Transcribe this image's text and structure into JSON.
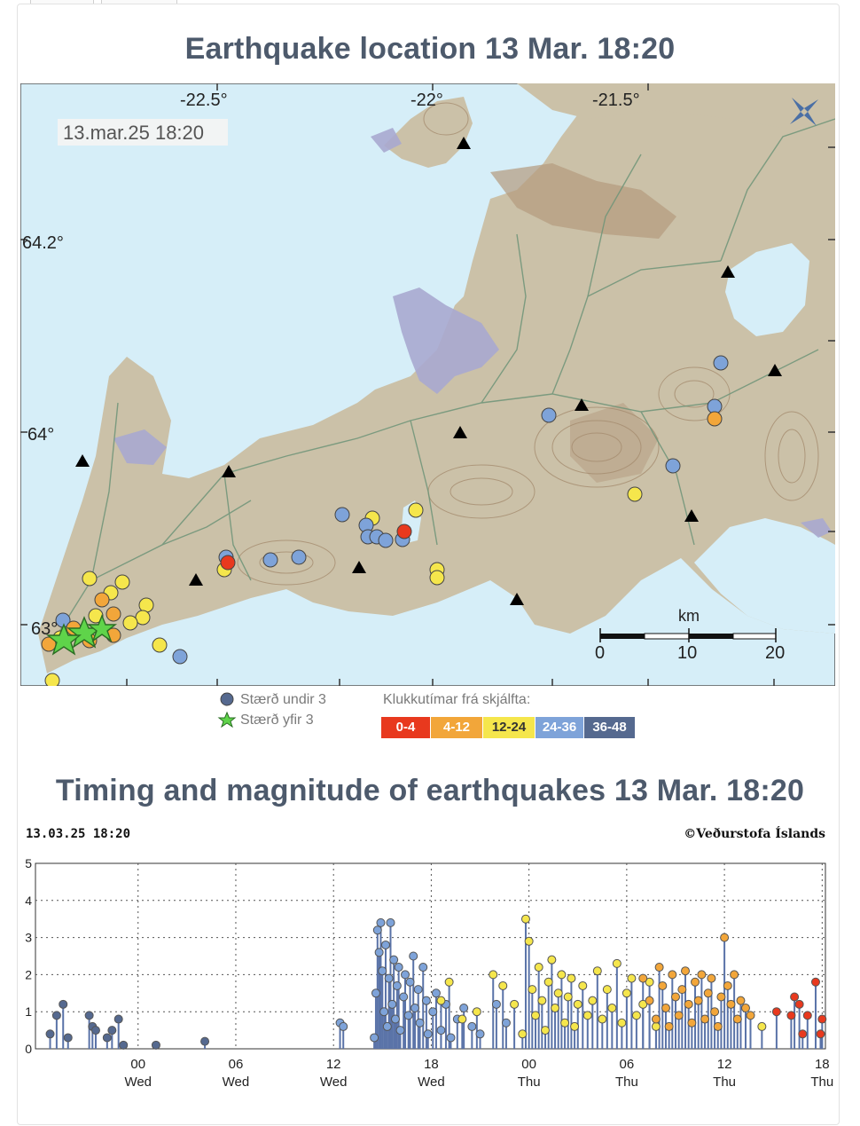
{
  "map_section": {
    "title": "Earthquake location 13 Mar. 18:20",
    "timestamp_label": "13.mar.25  18:20",
    "lon_ticks": [
      "-22.5°",
      "-22°",
      "-21.5°"
    ],
    "lat_ticks": [
      "64.2°",
      "64°",
      "63°"
    ],
    "scale_title": "km",
    "scale_ticks": [
      "0",
      "10",
      "20"
    ],
    "logo_icon": "vedurstofa-logo-icon"
  },
  "legend": {
    "under3": "Stærð undir 3",
    "over3": "Stærð yfir 3",
    "hours_title": "Klukkutímar frá skjálfta:",
    "bins": [
      {
        "label": "0-4",
        "color": "#e8391e"
      },
      {
        "label": "4-12",
        "color": "#f2a63a"
      },
      {
        "label": "12-24",
        "color": "#f5e64c"
      },
      {
        "label": "24-36",
        "color": "#7ea3d9"
      },
      {
        "label": "36-48",
        "color": "#55698f"
      }
    ]
  },
  "colors": {
    "sea": "#d6eef8",
    "land": "#cbc1a8",
    "lava": "#a9a9cf",
    "roads": "#6e9478",
    "title": "#4d5a6c"
  },
  "timeline_section": {
    "title": "Timing and magnitude of earthquakes 13 Mar. 18:20",
    "stamp_left": "13.03.25 18:20",
    "stamp_right": "©Veðurstofa Íslands"
  },
  "chart_data": {
    "type": "scatter",
    "title": "",
    "xlabel": "",
    "ylabel": "",
    "ylim": [
      0,
      5
    ],
    "y_ticks": [
      "0",
      "1",
      "2",
      "3",
      "4",
      "5"
    ],
    "x_range_hours": [
      -4.4,
      18.33
    ],
    "x_ticks": [
      {
        "h": 0,
        "time": "00",
        "day": "Wed"
      },
      {
        "h": 6,
        "time": "06",
        "day": "Wed"
      },
      {
        "h": 12,
        "time": "12",
        "day": "Wed"
      },
      {
        "h": 18,
        "time": "18",
        "day": "Wed"
      },
      {
        "h": 24,
        "time": "00",
        "day": "Thu"
      },
      {
        "h": 30,
        "time": "06",
        "day": "Thu"
      },
      {
        "h": 36,
        "time": "12",
        "day": "Thu"
      },
      {
        "h": 42,
        "time": "18",
        "day": "Thu"
      }
    ],
    "grid": true,
    "series": [
      {
        "color": "#55698f",
        "points": [
          [
            -5.4,
            0.4
          ],
          [
            -5.0,
            0.9
          ],
          [
            -4.6,
            1.2
          ],
          [
            -4.3,
            0.3
          ],
          [
            -3.0,
            0.9
          ],
          [
            -2.8,
            0.6
          ],
          [
            -2.6,
            0.5
          ],
          [
            -1.9,
            0.3
          ],
          [
            -1.6,
            0.5
          ],
          [
            -1.2,
            0.8
          ],
          [
            -0.9,
            0.1
          ],
          [
            1.1,
            0.1
          ],
          [
            4.1,
            0.2
          ]
        ]
      },
      {
        "color": "#7ea3d9",
        "points": [
          [
            12.4,
            0.7
          ],
          [
            12.6,
            0.6
          ],
          [
            14.5,
            0.3
          ],
          [
            14.6,
            1.5
          ],
          [
            14.7,
            3.2
          ],
          [
            14.8,
            2.6
          ],
          [
            14.9,
            3.4
          ],
          [
            15.0,
            2.1
          ],
          [
            15.1,
            1.0
          ],
          [
            15.2,
            2.8
          ],
          [
            15.3,
            0.6
          ],
          [
            15.4,
            1.9
          ],
          [
            15.5,
            3.4
          ],
          [
            15.6,
            1.2
          ],
          [
            15.7,
            2.4
          ],
          [
            15.8,
            0.8
          ],
          [
            15.9,
            1.7
          ],
          [
            16.0,
            2.2
          ],
          [
            16.1,
            0.5
          ],
          [
            16.3,
            1.4
          ],
          [
            16.4,
            2.0
          ],
          [
            16.6,
            0.9
          ],
          [
            16.7,
            1.8
          ],
          [
            16.9,
            2.5
          ],
          [
            17.0,
            1.1
          ],
          [
            17.2,
            1.6
          ],
          [
            17.3,
            0.7
          ],
          [
            17.5,
            2.2
          ],
          [
            17.7,
            1.3
          ],
          [
            17.8,
            0.4
          ],
          [
            18.1,
            1.0
          ],
          [
            18.3,
            1.5
          ],
          [
            18.6,
            0.5
          ],
          [
            18.9,
            1.2
          ],
          [
            19.2,
            0.3
          ],
          [
            19.6,
            0.8
          ],
          [
            20.0,
            1.1
          ],
          [
            20.5,
            0.6
          ],
          [
            21.0,
            0.4
          ],
          [
            22.0,
            1.2
          ],
          [
            22.6,
            0.7
          ]
        ]
      },
      {
        "color": "#f5e64c",
        "points": [
          [
            18.6,
            1.3
          ],
          [
            19.1,
            1.8
          ],
          [
            19.9,
            0.8
          ],
          [
            20.8,
            1.0
          ],
          [
            21.8,
            2.0
          ],
          [
            22.4,
            1.7
          ],
          [
            23.1,
            1.2
          ],
          [
            23.6,
            0.4
          ],
          [
            23.8,
            3.5
          ],
          [
            24.0,
            2.9
          ],
          [
            24.2,
            1.6
          ],
          [
            24.4,
            0.9
          ],
          [
            24.6,
            2.2
          ],
          [
            24.8,
            1.3
          ],
          [
            25.0,
            0.5
          ],
          [
            25.2,
            1.8
          ],
          [
            25.4,
            2.4
          ],
          [
            25.6,
            1.1
          ],
          [
            25.8,
            1.5
          ],
          [
            26.0,
            2.0
          ],
          [
            26.2,
            0.7
          ],
          [
            26.4,
            1.4
          ],
          [
            26.6,
            1.9
          ],
          [
            26.8,
            0.6
          ],
          [
            27.0,
            1.2
          ],
          [
            27.3,
            1.7
          ],
          [
            27.6,
            0.9
          ],
          [
            27.9,
            1.3
          ],
          [
            28.2,
            2.1
          ],
          [
            28.5,
            0.8
          ],
          [
            28.8,
            1.6
          ],
          [
            29.1,
            1.1
          ],
          [
            29.4,
            2.3
          ],
          [
            29.7,
            0.7
          ],
          [
            30.0,
            1.5
          ],
          [
            30.3,
            1.9
          ],
          [
            30.6,
            0.9
          ],
          [
            31.0,
            1.2
          ],
          [
            31.4,
            1.8
          ],
          [
            31.8,
            0.6
          ],
          [
            38.3,
            0.6
          ]
        ]
      },
      {
        "color": "#f2a63a",
        "points": [
          [
            31.0,
            1.9
          ],
          [
            31.4,
            1.3
          ],
          [
            31.8,
            0.8
          ],
          [
            32.0,
            2.2
          ],
          [
            32.2,
            1.7
          ],
          [
            32.4,
            1.1
          ],
          [
            32.6,
            0.6
          ],
          [
            32.8,
            2.0
          ],
          [
            33.0,
            1.4
          ],
          [
            33.2,
            0.9
          ],
          [
            33.4,
            1.6
          ],
          [
            33.6,
            2.1
          ],
          [
            33.8,
            1.2
          ],
          [
            34.0,
            0.7
          ],
          [
            34.2,
            1.8
          ],
          [
            34.4,
            1.3
          ],
          [
            34.6,
            2.0
          ],
          [
            34.8,
            0.8
          ],
          [
            35.0,
            1.5
          ],
          [
            35.2,
            1.9
          ],
          [
            35.4,
            1.0
          ],
          [
            35.6,
            0.6
          ],
          [
            35.8,
            1.4
          ],
          [
            36.0,
            3.0
          ],
          [
            36.2,
            1.7
          ],
          [
            36.4,
            1.2
          ],
          [
            36.6,
            2.0
          ],
          [
            36.8,
            0.8
          ],
          [
            37.0,
            1.3
          ],
          [
            37.3,
            1.1
          ],
          [
            37.6,
            0.9
          ]
        ]
      },
      {
        "color": "#e8391e",
        "points": [
          [
            39.2,
            1.0
          ],
          [
            40.1,
            0.9
          ],
          [
            40.3,
            1.4
          ],
          [
            40.6,
            1.2
          ],
          [
            40.8,
            0.4
          ],
          [
            41.1,
            0.9
          ],
          [
            41.9,
            0.4
          ],
          [
            42.3,
            1.4
          ],
          [
            41.6,
            1.8
          ],
          [
            42.0,
            0.8
          ]
        ]
      }
    ]
  }
}
